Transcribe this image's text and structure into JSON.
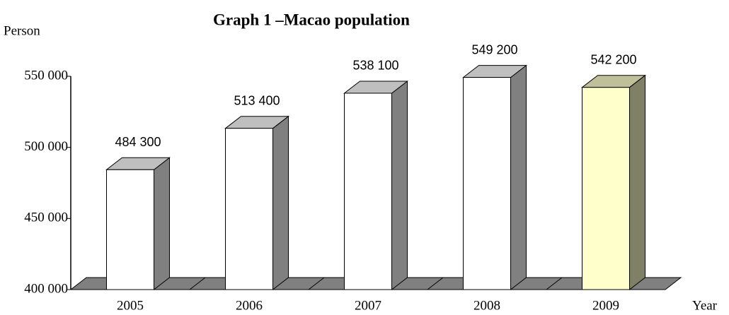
{
  "chart_data": {
    "type": "bar3d",
    "title": "Graph 1 –Macao population",
    "y_label": "Person",
    "x_label": "Year",
    "categories": [
      "2005",
      "2006",
      "2007",
      "2008",
      "2009"
    ],
    "values": [
      484300,
      513400,
      538100,
      549200,
      542200
    ],
    "value_labels": [
      "484 300",
      "513 400",
      "538 100",
      "549 200",
      "542 200"
    ],
    "colors": [
      "#ffffff",
      "#ffffff",
      "#ffffff",
      "#ffffff",
      "#ffffcc"
    ],
    "ylim": [
      400000,
      550000
    ],
    "yticks": [
      {
        "value": 400000,
        "label": "400 000"
      },
      {
        "value": 450000,
        "label": "450 000"
      },
      {
        "value": 500000,
        "label": "500 000"
      },
      {
        "value": 550000,
        "label": "550 000"
      }
    ],
    "grid": false
  }
}
